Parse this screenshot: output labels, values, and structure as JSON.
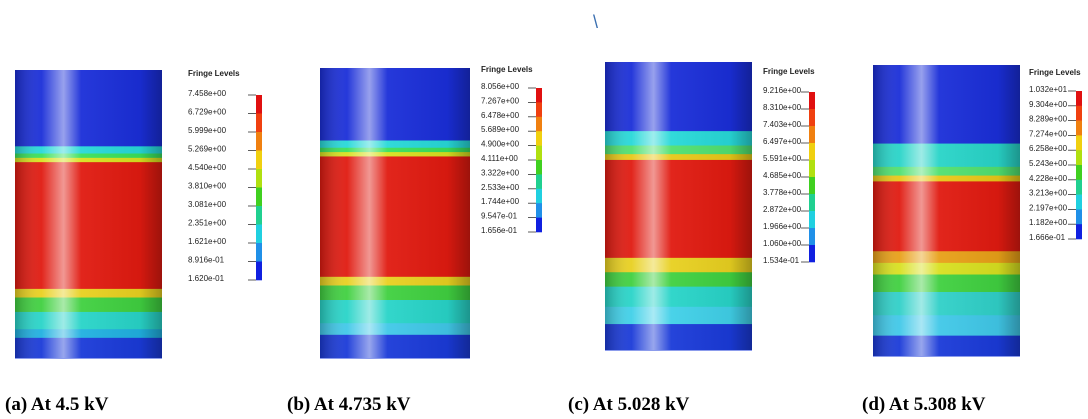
{
  "stray_mark": "\\",
  "panels": [
    {
      "legend_title": "Fringe Levels",
      "levels": [
        "7.458e+00",
        "6.729e+00",
        "5.999e+00",
        "5.269e+00",
        "4.540e+00",
        "3.810e+00",
        "3.081e+00",
        "2.351e+00",
        "1.621e+00",
        "8.916e-01",
        "1.620e-01"
      ],
      "caption": "(a)  At 4.5 kV"
    },
    {
      "legend_title": "Fringe Levels",
      "levels": [
        "8.056e+00",
        "7.267e+00",
        "6.478e+00",
        "5.689e+00",
        "4.900e+00",
        "4.111e+00",
        "3.322e+00",
        "2.533e+00",
        "1.744e+00",
        "9.547e-01",
        "1.656e-01"
      ],
      "caption": "(b)  At 4.735 kV"
    },
    {
      "legend_title": "Fringe Levels",
      "levels": [
        "9.216e+00",
        "8.310e+00",
        "7.403e+00",
        "6.497e+00",
        "5.591e+00",
        "4.685e+00",
        "3.778e+00",
        "2.872e+00",
        "1.966e+00",
        "1.060e+00",
        "1.534e-01"
      ],
      "caption": "(c)  At 5.028 kV"
    },
    {
      "legend_title": "Fringe Levels",
      "levels": [
        "1.032e+01",
        "9.304e+00",
        "8.289e+00",
        "7.274e+00",
        "6.258e+00",
        "5.243e+00",
        "4.228e+00",
        "3.213e+00",
        "2.197e+00",
        "1.182e+00",
        "1.666e-01"
      ],
      "caption": "(d)  At 5.308 kV"
    }
  ]
}
